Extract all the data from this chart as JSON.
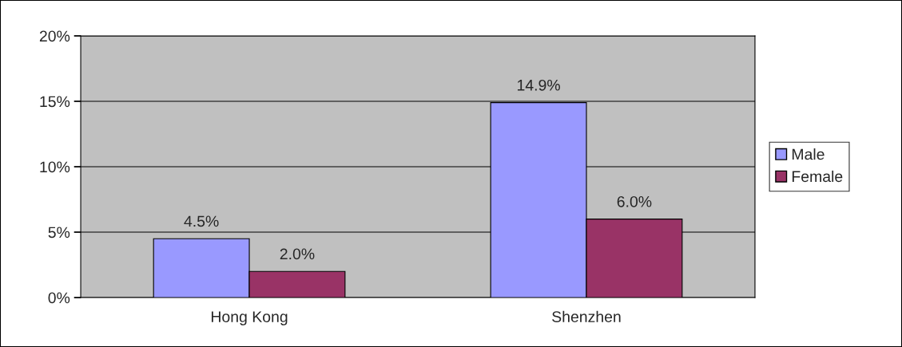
{
  "chart_data": {
    "type": "bar",
    "categories": [
      "Hong Kong",
      "Shenzhen"
    ],
    "series": [
      {
        "name": "Male",
        "color": "#9999ff",
        "values": [
          4.5,
          14.9
        ],
        "value_labels": [
          "4.5%",
          "14.9%"
        ]
      },
      {
        "name": "Female",
        "color": "#993366",
        "values": [
          2.0,
          6.0
        ],
        "value_labels": [
          "2.0%",
          "6.0%"
        ]
      }
    ],
    "ylim": [
      0,
      20
    ],
    "yticks": [
      {
        "value": 0,
        "label": "0%"
      },
      {
        "value": 5,
        "label": "5%"
      },
      {
        "value": 10,
        "label": "10%"
      },
      {
        "value": 15,
        "label": "15%"
      },
      {
        "value": 20,
        "label": "20%"
      }
    ],
    "grid": "y",
    "legend": "right"
  }
}
